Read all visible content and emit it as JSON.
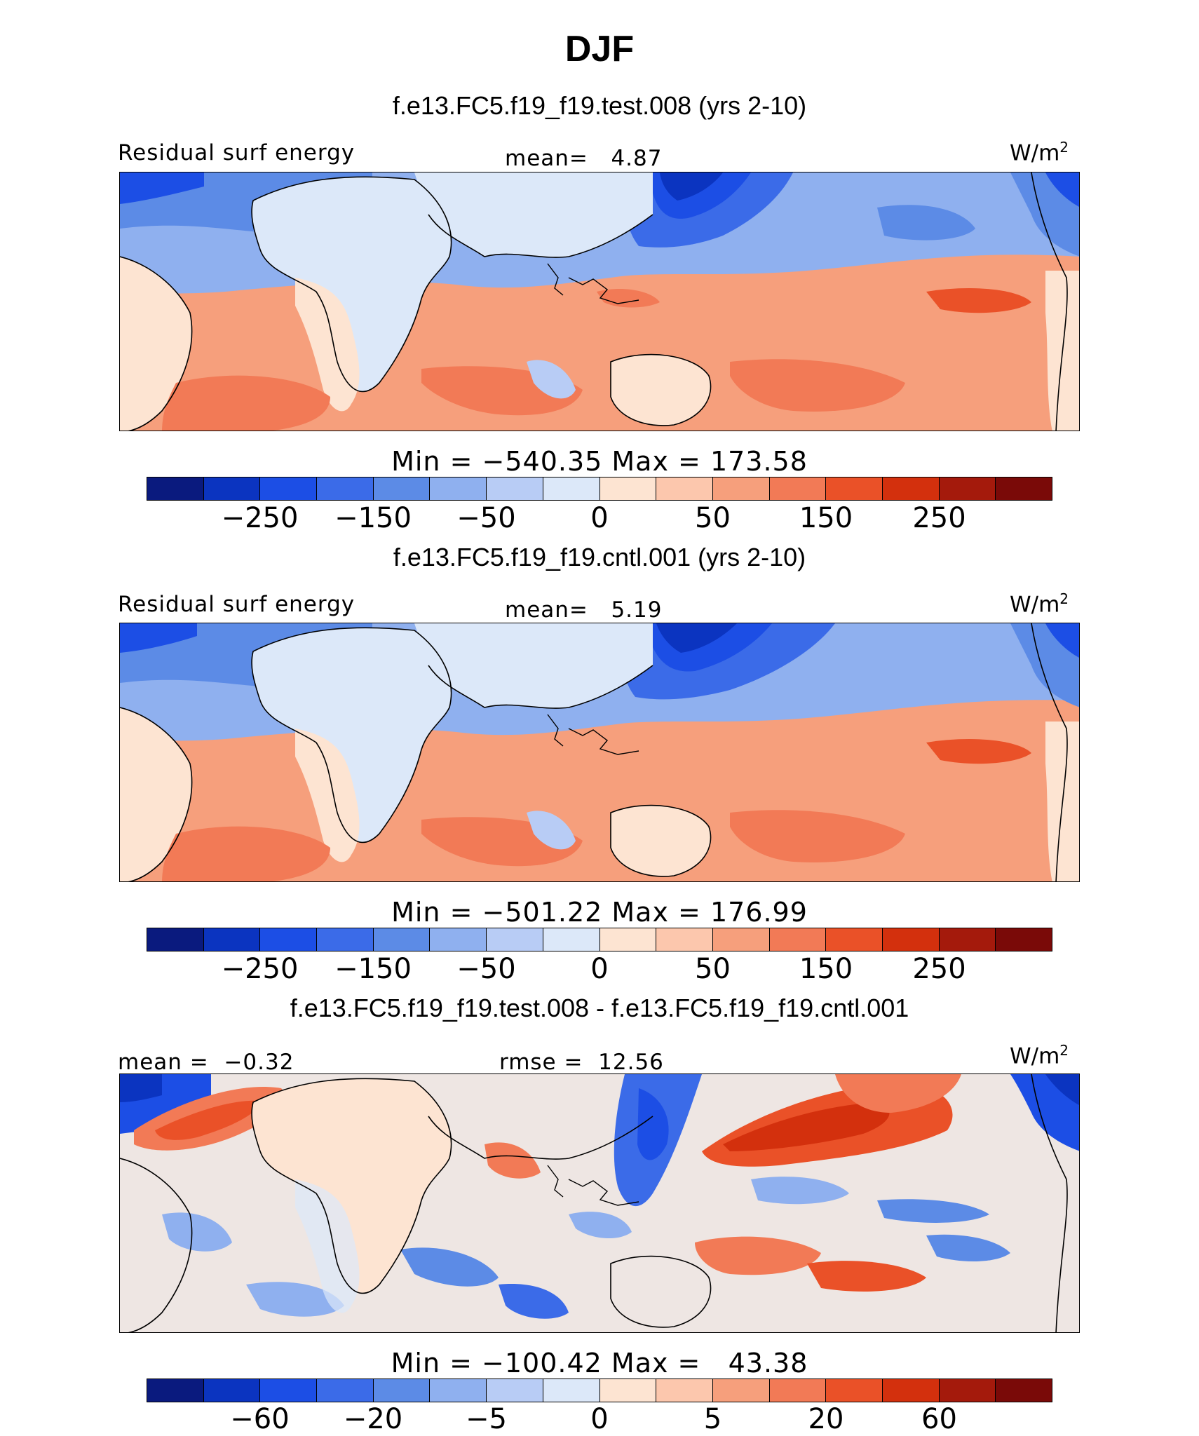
{
  "title": "DJF",
  "palette": [
    "#0a1a7e",
    "#0b34c0",
    "#1c4ee5",
    "#3b6be8",
    "#5c8be6",
    "#8fb0ef",
    "#b8ccf5",
    "#dce8f9",
    "#fde4d2",
    "#fcc7ad",
    "#f69f7c",
    "#f27a56",
    "#ea5128",
    "#d3300d",
    "#a41a0c",
    "#7a0a08"
  ],
  "panels": [
    {
      "case_title": "f.e13.FC5.f19_f19.test.008 (yrs 2-10)",
      "left_label": "Residual surf energy",
      "center_label": "mean=   4.87",
      "units": "W/m",
      "units_exp": "2",
      "minmax": "Min = −540.35 Max = 173.58",
      "tick_labels": [
        "−250",
        "−150",
        "−50",
        "0",
        "50",
        "150",
        "250"
      ]
    },
    {
      "case_title": "f.e13.FC5.f19_f19.cntl.001 (yrs 2-10)",
      "left_label": "Residual surf energy",
      "center_label": "mean=   5.19",
      "units": "W/m",
      "units_exp": "2",
      "minmax": "Min = −501.22 Max = 176.99",
      "tick_labels": [
        "−250",
        "−150",
        "−50",
        "0",
        "50",
        "150",
        "250"
      ]
    },
    {
      "case_title": "f.e13.FC5.f19_f19.test.008 - f.e13.FC5.f19_f19.cntl.001",
      "left_label": "mean =  −0.32",
      "center_label": "rmse =  12.56",
      "units": "W/m",
      "units_exp": "2",
      "minmax": "Min = −100.42 Max =   43.38",
      "tick_labels": [
        "−60",
        "−20",
        "−5",
        "0",
        "5",
        "20",
        "60"
      ]
    }
  ],
  "chart_data": [
    {
      "type": "heatmap",
      "title": "f.e13.FC5.f19_f19.test.008 (yrs 2-10)",
      "variable": "Residual surf energy",
      "units": "W/m2",
      "mean": 4.87,
      "min": -540.35,
      "max": 173.58,
      "colorbar_ticks": [
        -250,
        -150,
        -50,
        0,
        50,
        150,
        250
      ]
    },
    {
      "type": "heatmap",
      "title": "f.e13.FC5.f19_f19.cntl.001 (yrs 2-10)",
      "variable": "Residual surf energy",
      "units": "W/m2",
      "mean": 5.19,
      "min": -501.22,
      "max": 176.99,
      "colorbar_ticks": [
        -250,
        -150,
        -50,
        0,
        50,
        150,
        250
      ]
    },
    {
      "type": "heatmap",
      "title": "f.e13.FC5.f19_f19.test.008 - f.e13.FC5.f19_f19.cntl.001",
      "units": "W/m2",
      "mean": -0.32,
      "rmse": 12.56,
      "min": -100.42,
      "max": 43.38,
      "colorbar_ticks": [
        -60,
        -20,
        -5,
        0,
        5,
        20,
        60
      ]
    }
  ]
}
